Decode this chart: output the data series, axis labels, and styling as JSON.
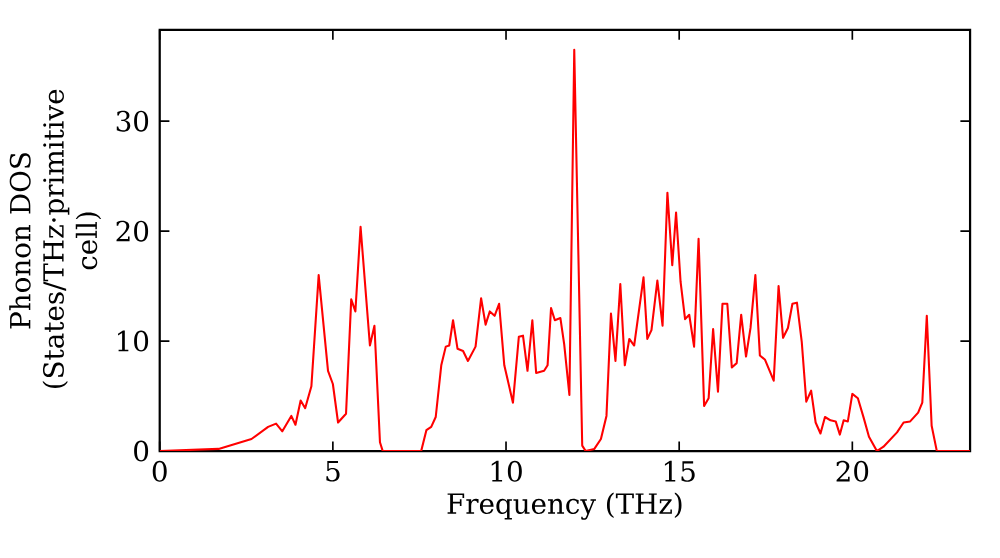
{
  "chart_data": {
    "type": "line",
    "xlabel": "Frequency (THz)",
    "ylabel": "Phonon DOS (States/THz·primitive cell)",
    "xlim": [
      0,
      23.4
    ],
    "ylim": [
      0,
      38.3
    ],
    "xticks": [
      0,
      5,
      10,
      15,
      20
    ],
    "yticks": [
      0,
      10,
      20,
      30
    ],
    "series": [
      {
        "color": "#ff0000",
        "x": [
          0,
          1.7,
          2.65,
          3.13,
          3.36,
          3.54,
          3.8,
          3.92,
          4.07,
          4.2,
          4.38,
          4.59,
          4.86,
          5.0,
          5.15,
          5.38,
          5.53,
          5.65,
          5.8,
          6.07,
          6.2,
          6.36,
          6.44,
          7.55,
          7.7,
          7.84,
          7.97,
          8.13,
          8.26,
          8.36,
          8.47,
          8.6,
          8.76,
          8.9,
          9.12,
          9.28,
          9.41,
          9.53,
          9.67,
          9.8,
          9.95,
          10.2,
          10.37,
          10.49,
          10.62,
          10.76,
          10.87,
          11.1,
          11.2,
          11.3,
          11.41,
          11.57,
          11.68,
          11.83,
          11.97,
          12.2,
          12.3,
          12.55,
          12.74,
          12.9,
          13.03,
          13.16,
          13.3,
          13.43,
          13.56,
          13.7,
          13.97,
          14.08,
          14.2,
          14.37,
          14.52,
          14.66,
          14.8,
          14.91,
          15.04,
          15.17,
          15.29,
          15.43,
          15.56,
          15.72,
          15.85,
          15.98,
          16.12,
          16.25,
          16.39,
          16.52,
          16.66,
          16.79,
          16.93,
          17.06,
          17.2,
          17.33,
          17.48,
          17.73,
          17.87,
          18.0,
          18.14,
          18.27,
          18.4,
          18.54,
          18.67,
          18.81,
          18.94,
          19.08,
          19.21,
          19.37,
          19.52,
          19.64,
          19.75,
          19.87,
          20.0,
          20.16,
          20.33,
          20.48,
          20.71,
          20.9,
          21.29,
          21.48,
          21.67,
          21.9,
          22.02,
          22.15,
          22.29,
          22.44,
          23.4
        ],
        "values": [
          0,
          0.2,
          1.1,
          2.2,
          2.5,
          1.8,
          3.2,
          2.4,
          4.6,
          3.9,
          5.9,
          16.0,
          7.3,
          6.1,
          2.6,
          3.4,
          13.8,
          12.7,
          20.4,
          9.6,
          11.4,
          0.8,
          0,
          0,
          1.9,
          2.2,
          3.1,
          7.8,
          9.5,
          9.6,
          11.9,
          9.3,
          9.1,
          8.2,
          9.5,
          13.9,
          11.5,
          12.7,
          12.3,
          13.4,
          7.8,
          4.4,
          10.4,
          10.5,
          7.3,
          11.9,
          7.1,
          7.3,
          7.8,
          13.0,
          11.9,
          12.1,
          9.7,
          5.1,
          36.5,
          0.5,
          0,
          0.2,
          1.1,
          3.2,
          12.5,
          8.2,
          15.2,
          7.8,
          10.2,
          9.6,
          15.8,
          10.2,
          11.0,
          15.5,
          11.4,
          23.5,
          16.9,
          21.7,
          15.4,
          12.0,
          12.4,
          9.5,
          19.3,
          4.1,
          4.8,
          11.1,
          5.4,
          13.4,
          13.4,
          7.6,
          8.0,
          12.4,
          8.6,
          11.2,
          16.0,
          8.7,
          8.3,
          6.4,
          15.0,
          10.3,
          11.2,
          13.4,
          13.5,
          9.9,
          4.5,
          5.5,
          2.6,
          1.6,
          3.1,
          2.8,
          2.7,
          1.5,
          2.8,
          2.7,
          5.2,
          4.8,
          3.0,
          1.3,
          0,
          0.4,
          1.7,
          2.6,
          2.7,
          3.5,
          4.4,
          12.3,
          2.3,
          0,
          0
        ]
      }
    ]
  }
}
